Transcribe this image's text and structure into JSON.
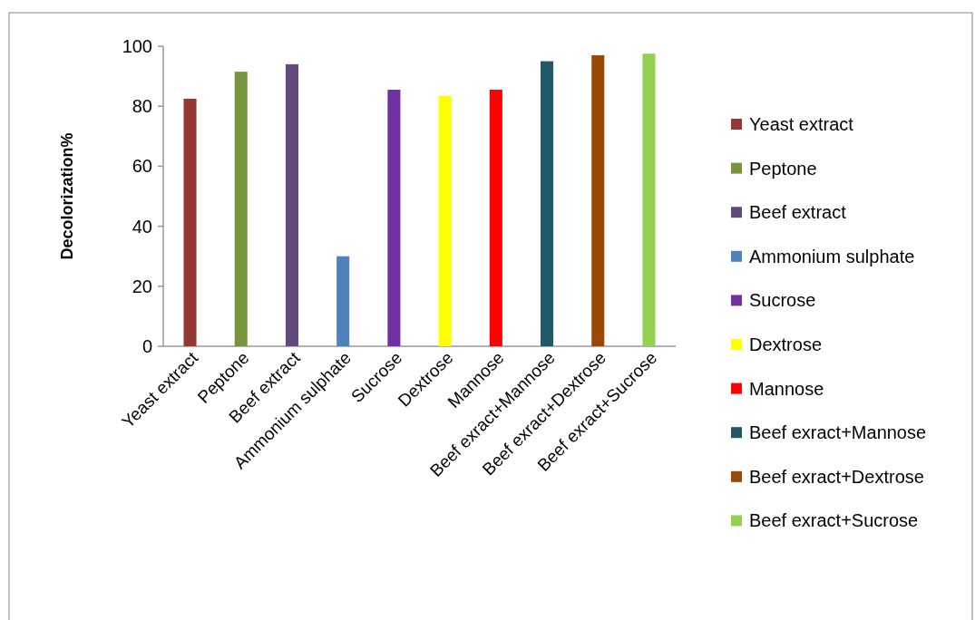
{
  "chart_data": {
    "type": "bar",
    "ylabel": "Decolorization%",
    "categories": [
      "Yeast extract",
      "Peptone",
      "Beef extract",
      "Ammonium sulphate",
      "Sucrose",
      "Dextrose",
      "Mannose",
      "Beef exract+Mannose",
      "Beef exract+Dextrose",
      "Beef exract+Sucrose"
    ],
    "series": [
      {
        "name": "Yeast extract",
        "color": "#953735",
        "values": [
          82.5,
          null,
          null,
          null,
          null,
          null,
          null,
          null,
          null,
          null
        ]
      },
      {
        "name": "Peptone",
        "color": "#77933c",
        "values": [
          null,
          91.5,
          null,
          null,
          null,
          null,
          null,
          null,
          null,
          null
        ]
      },
      {
        "name": "Beef extract",
        "color": "#604a7b",
        "values": [
          null,
          null,
          94,
          null,
          null,
          null,
          null,
          null,
          null,
          null
        ]
      },
      {
        "name": "Ammonium sulphate",
        "color": "#4f81bd",
        "values": [
          null,
          null,
          null,
          30,
          null,
          null,
          null,
          null,
          null,
          null
        ]
      },
      {
        "name": "Sucrose",
        "color": "#7030a0",
        "values": [
          null,
          null,
          null,
          null,
          85.5,
          null,
          null,
          null,
          null,
          null
        ]
      },
      {
        "name": "Dextrose",
        "color": "#ffff00",
        "values": [
          null,
          null,
          null,
          null,
          null,
          83.5,
          null,
          null,
          null,
          null
        ]
      },
      {
        "name": "Mannose",
        "color": "#ff0000",
        "values": [
          null,
          null,
          null,
          null,
          null,
          null,
          85.5,
          null,
          null,
          null
        ]
      },
      {
        "name": "Beef exract+Mannose",
        "color": "#215968",
        "values": [
          null,
          null,
          null,
          null,
          null,
          null,
          null,
          95,
          null,
          null
        ]
      },
      {
        "name": "Beef exract+Dextrose",
        "color": "#984807",
        "values": [
          null,
          null,
          null,
          null,
          null,
          null,
          null,
          null,
          97,
          null
        ]
      },
      {
        "name": "Beef exract+Sucrose",
        "color": "#92d050",
        "values": [
          null,
          null,
          null,
          null,
          null,
          null,
          null,
          null,
          null,
          97.5
        ]
      }
    ],
    "ylim": [
      0,
      100
    ],
    "yticks": [
      0,
      20,
      40,
      60,
      80,
      100
    ],
    "legend": "right"
  }
}
